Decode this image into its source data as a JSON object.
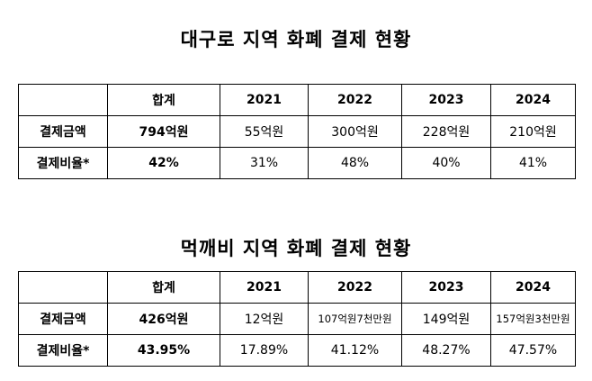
{
  "tables": [
    {
      "title": "대구로 지역 화폐 결제 현황",
      "header": [
        "",
        "합계",
        "2021",
        "2022",
        "2023",
        "2024"
      ],
      "rows": [
        {
          "label": "결제금액",
          "cells": [
            "794억원",
            "55억원",
            "300억원",
            "228억원",
            "210억원"
          ]
        },
        {
          "label": "결제비율*",
          "cells": [
            "42%",
            "31%",
            "48%",
            "40%",
            "41%"
          ]
        }
      ]
    },
    {
      "title": "먹깨비 지역 화폐 결제 현황",
      "header": [
        "",
        "합계",
        "2021",
        "2022",
        "2023",
        "2024"
      ],
      "rows": [
        {
          "label": "결제금액",
          "cells": [
            "426억원",
            "12억원",
            "107억원7천만원",
            "149억원",
            "157억원3천만원"
          ]
        },
        {
          "label": "결제비율*",
          "cells": [
            "43.95%",
            "17.89%",
            "41.12%",
            "48.27%",
            "47.57%"
          ]
        }
      ]
    }
  ]
}
